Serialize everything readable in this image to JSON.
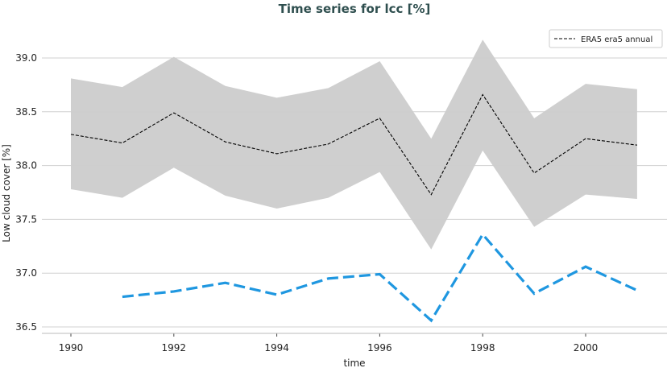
{
  "chart_data": {
    "type": "line",
    "title": "Time series for lcc [%]",
    "xlabel": "time",
    "ylabel": "Low cloud cover [%]",
    "xlim": [
      1989.3,
      2001.6
    ],
    "ylim": [
      36.4,
      39.3
    ],
    "xticks": [
      1990,
      1992,
      1994,
      1996,
      1998,
      2000
    ],
    "xtick_labels": [
      "1990",
      "1992",
      "1994",
      "1996",
      "1998",
      "2000"
    ],
    "yticks": [
      36.5,
      37.0,
      37.5,
      38.0,
      38.5,
      39.0
    ],
    "ytick_labels": [
      "36.5",
      "37.0",
      "37.5",
      "38.0",
      "38.5",
      "39.0"
    ],
    "grid": "horizontal",
    "legend_position": "top-right",
    "series": [
      {
        "name": "ERA5 era5 annual",
        "style": "dashed",
        "color": "#000000",
        "x": [
          1990,
          1991,
          1992,
          1993,
          1994,
          1995,
          1996,
          1997,
          1998,
          1999,
          2000,
          2001
        ],
        "y": [
          38.29,
          38.21,
          38.49,
          38.22,
          38.11,
          38.2,
          38.44,
          37.73,
          38.66,
          37.93,
          38.25,
          38.19
        ],
        "band_upper": [
          38.81,
          38.73,
          39.01,
          38.74,
          38.63,
          38.72,
          38.97,
          38.25,
          39.17,
          38.44,
          38.76,
          38.71
        ],
        "band_lower": [
          37.78,
          37.7,
          37.98,
          37.72,
          37.6,
          37.7,
          37.94,
          37.22,
          38.14,
          37.43,
          37.73,
          37.69
        ],
        "band_color": "#cccccc"
      },
      {
        "style": "dashed",
        "color": "#1f97e0",
        "x": [
          1991,
          1992,
          1993,
          1994,
          1995,
          1996,
          1997,
          1998,
          1999,
          2000,
          2001
        ],
        "y": [
          36.78,
          36.83,
          36.91,
          36.8,
          36.95,
          36.99,
          36.56,
          37.36,
          36.81,
          37.06,
          36.84
        ]
      }
    ]
  }
}
